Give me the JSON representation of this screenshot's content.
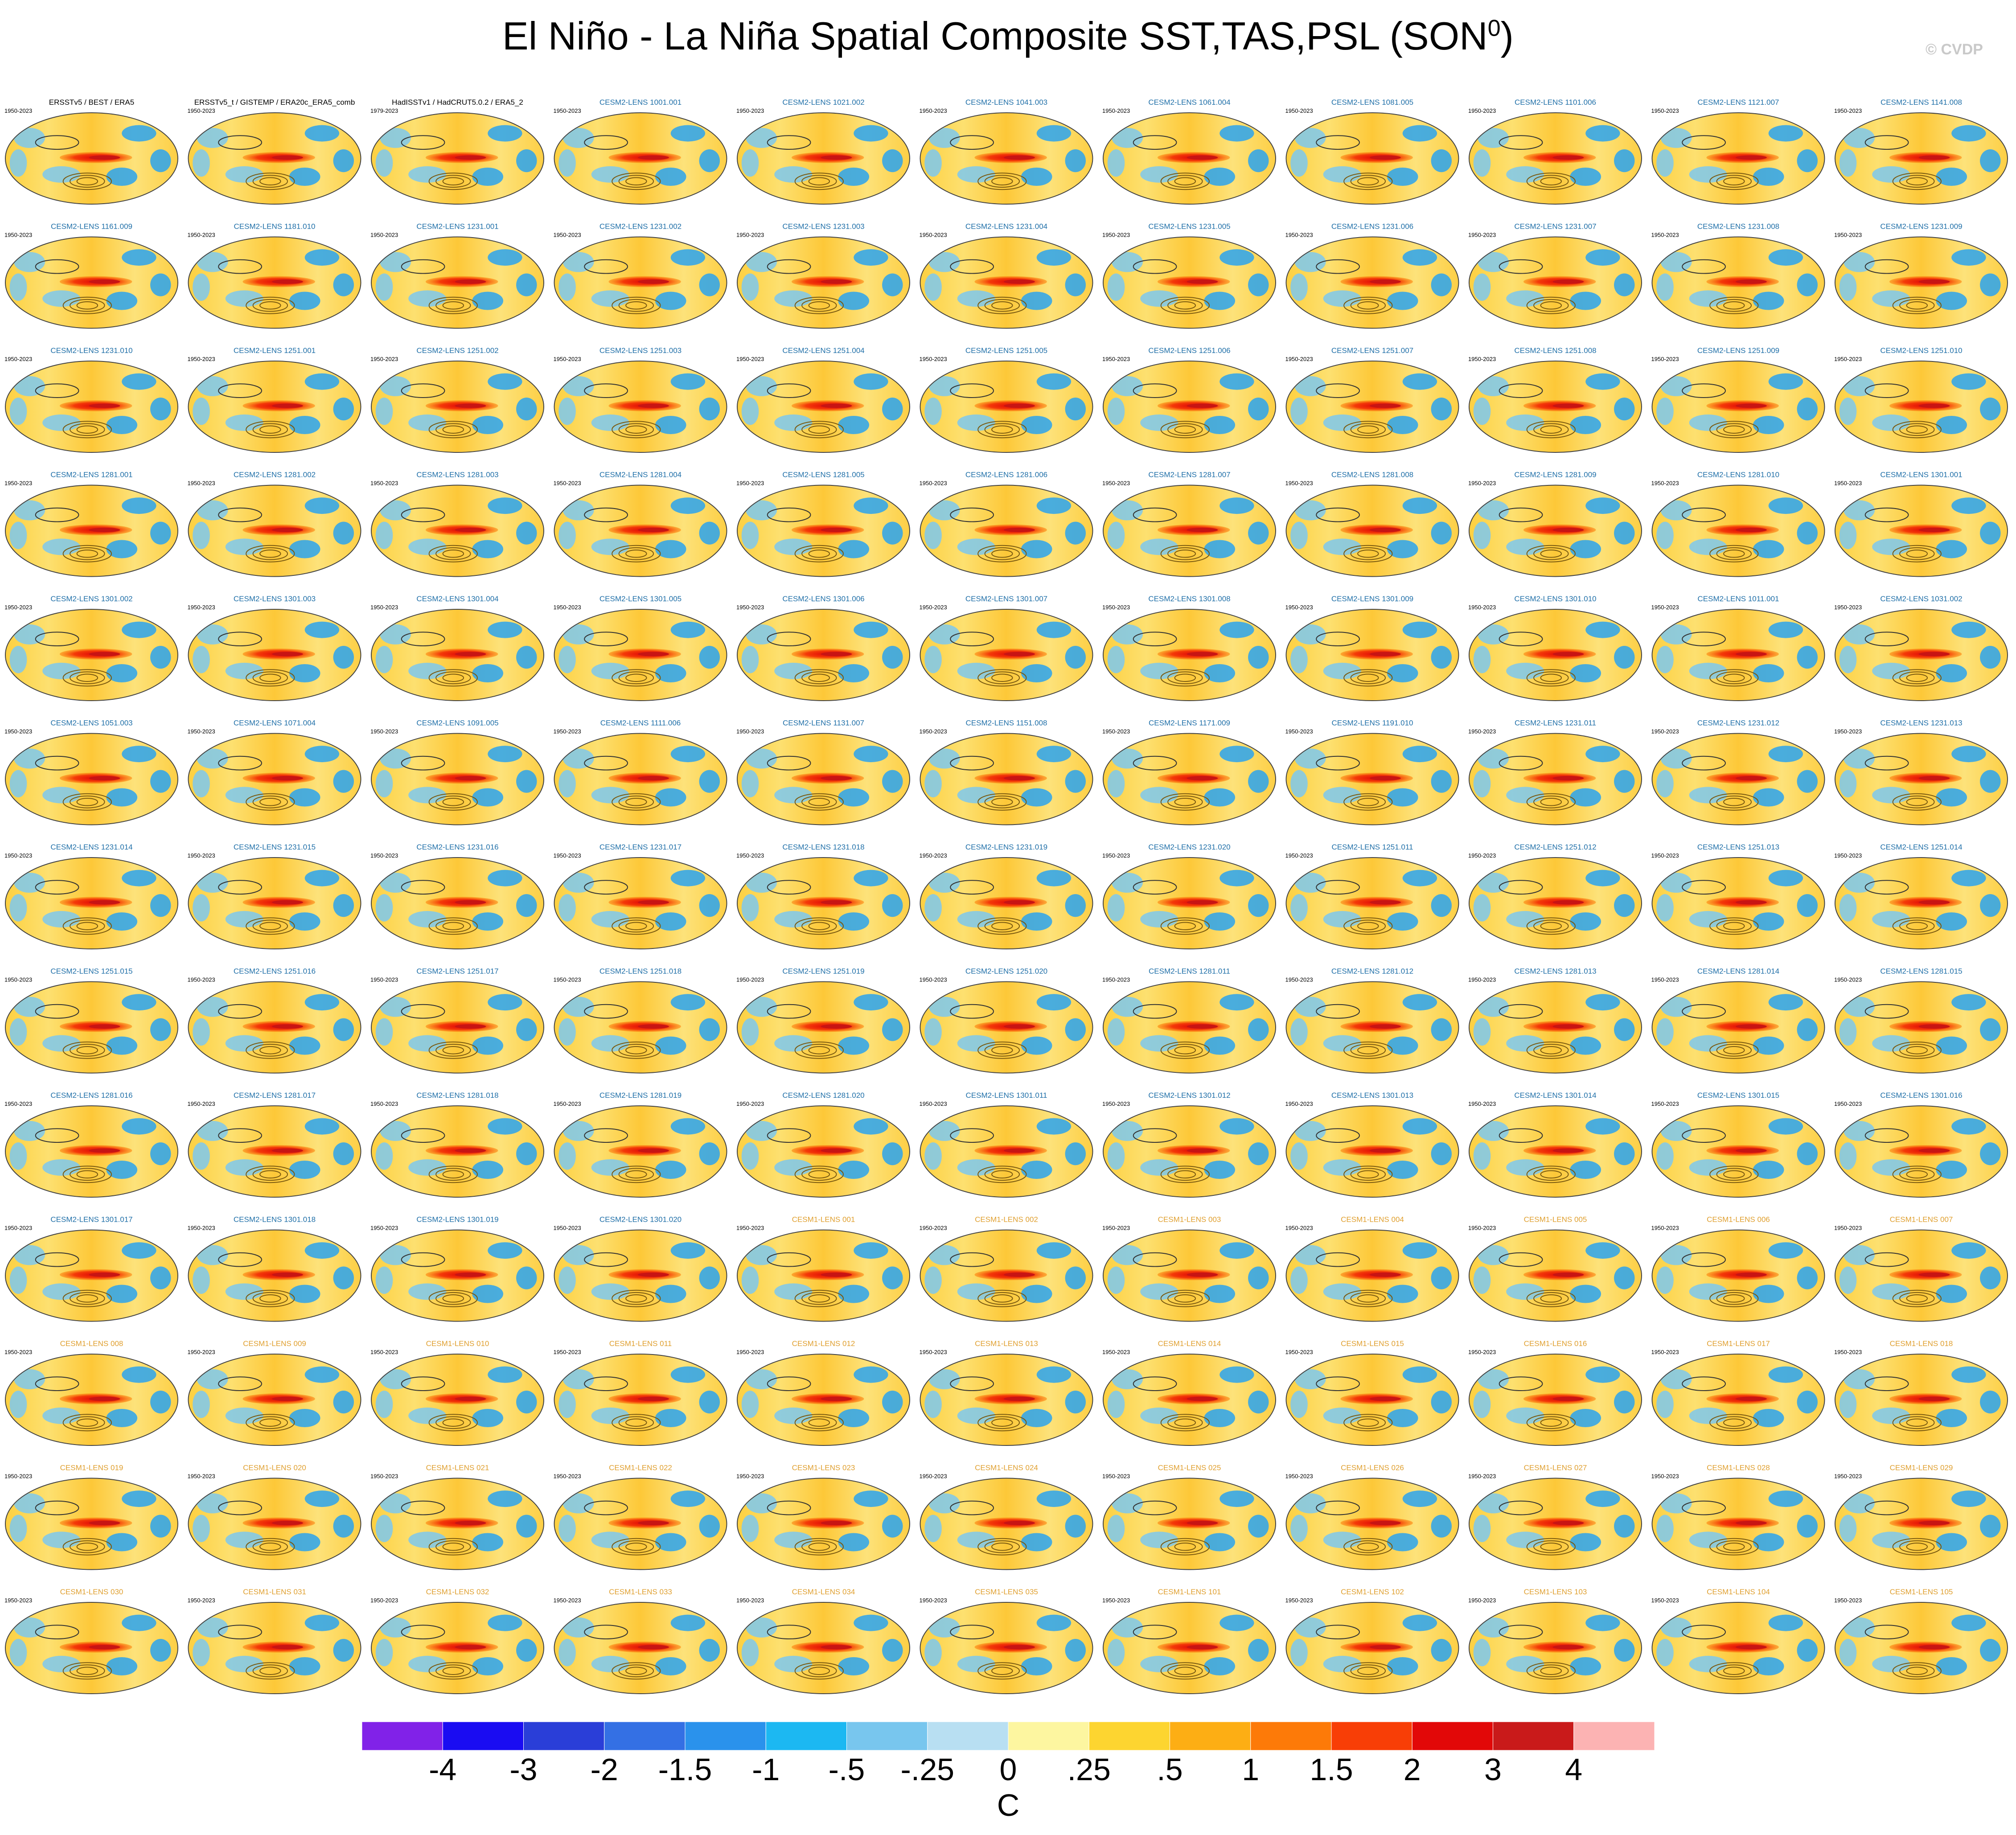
{
  "title": "El Niño - La Niña Spatial Composite SST,TAS,PSL (SON",
  "title_sup": "0",
  "title_close": ")",
  "credit": "© CVDP",
  "panel_period": "1950-2023",
  "panel_period_alt": "1979-2023",
  "panels": [
    [
      "ERSSTv5 / BEST / ERA5",
      "ERSSTv5_t / GISTEMP / ERA20c_ERA5_comb",
      "HadISSTv1 / HadCRUT5.0.2 / ERA5_2",
      "CESM2-LENS 1001.001",
      "CESM2-LENS 1021.002",
      "CESM2-LENS 1041.003",
      "CESM2-LENS 1061.004",
      "CESM2-LENS 1081.005",
      "CESM2-LENS 1101.006",
      "CESM2-LENS 1121.007",
      "CESM2-LENS 1141.008"
    ],
    [
      "CESM2-LENS 1161.009",
      "CESM2-LENS 1181.010",
      "CESM2-LENS 1231.001",
      "CESM2-LENS 1231.002",
      "CESM2-LENS 1231.003",
      "CESM2-LENS 1231.004",
      "CESM2-LENS 1231.005",
      "CESM2-LENS 1231.006",
      "CESM2-LENS 1231.007",
      "CESM2-LENS 1231.008",
      "CESM2-LENS 1231.009"
    ],
    [
      "CESM2-LENS 1231.010",
      "CESM2-LENS 1251.001",
      "CESM2-LENS 1251.002",
      "CESM2-LENS 1251.003",
      "CESM2-LENS 1251.004",
      "CESM2-LENS 1251.005",
      "CESM2-LENS 1251.006",
      "CESM2-LENS 1251.007",
      "CESM2-LENS 1251.008",
      "CESM2-LENS 1251.009",
      "CESM2-LENS 1251.010"
    ],
    [
      "CESM2-LENS 1281.001",
      "CESM2-LENS 1281.002",
      "CESM2-LENS 1281.003",
      "CESM2-LENS 1281.004",
      "CESM2-LENS 1281.005",
      "CESM2-LENS 1281.006",
      "CESM2-LENS 1281.007",
      "CESM2-LENS 1281.008",
      "CESM2-LENS 1281.009",
      "CESM2-LENS 1281.010",
      "CESM2-LENS 1301.001"
    ],
    [
      "CESM2-LENS 1301.002",
      "CESM2-LENS 1301.003",
      "CESM2-LENS 1301.004",
      "CESM2-LENS 1301.005",
      "CESM2-LENS 1301.006",
      "CESM2-LENS 1301.007",
      "CESM2-LENS 1301.008",
      "CESM2-LENS 1301.009",
      "CESM2-LENS 1301.010",
      "CESM2-LENS 1011.001",
      "CESM2-LENS 1031.002"
    ],
    [
      "CESM2-LENS 1051.003",
      "CESM2-LENS 1071.004",
      "CESM2-LENS 1091.005",
      "CESM2-LENS 1111.006",
      "CESM2-LENS 1131.007",
      "CESM2-LENS 1151.008",
      "CESM2-LENS 1171.009",
      "CESM2-LENS 1191.010",
      "CESM2-LENS 1231.011",
      "CESM2-LENS 1231.012",
      "CESM2-LENS 1231.013"
    ],
    [
      "CESM2-LENS 1231.014",
      "CESM2-LENS 1231.015",
      "CESM2-LENS 1231.016",
      "CESM2-LENS 1231.017",
      "CESM2-LENS 1231.018",
      "CESM2-LENS 1231.019",
      "CESM2-LENS 1231.020",
      "CESM2-LENS 1251.011",
      "CESM2-LENS 1251.012",
      "CESM2-LENS 1251.013",
      "CESM2-LENS 1251.014"
    ],
    [
      "CESM2-LENS 1251.015",
      "CESM2-LENS 1251.016",
      "CESM2-LENS 1251.017",
      "CESM2-LENS 1251.018",
      "CESM2-LENS 1251.019",
      "CESM2-LENS 1251.020",
      "CESM2-LENS 1281.011",
      "CESM2-LENS 1281.012",
      "CESM2-LENS 1281.013",
      "CESM2-LENS 1281.014",
      "CESM2-LENS 1281.015"
    ],
    [
      "CESM2-LENS 1281.016",
      "CESM2-LENS 1281.017",
      "CESM2-LENS 1281.018",
      "CESM2-LENS 1281.019",
      "CESM2-LENS 1281.020",
      "CESM2-LENS 1301.011",
      "CESM2-LENS 1301.012",
      "CESM2-LENS 1301.013",
      "CESM2-LENS 1301.014",
      "CESM2-LENS 1301.015",
      "CESM2-LENS 1301.016"
    ],
    [
      "CESM2-LENS 1301.017",
      "CESM2-LENS 1301.018",
      "CESM2-LENS 1301.019",
      "CESM2-LENS 1301.020",
      "CESM1-LENS 001",
      "CESM1-LENS 002",
      "CESM1-LENS 003",
      "CESM1-LENS 004",
      "CESM1-LENS 005",
      "CESM1-LENS 006",
      "CESM1-LENS 007"
    ],
    [
      "CESM1-LENS 008",
      "CESM1-LENS 009",
      "CESM1-LENS 010",
      "CESM1-LENS 011",
      "CESM1-LENS 012",
      "CESM1-LENS 013",
      "CESM1-LENS 014",
      "CESM1-LENS 015",
      "CESM1-LENS 016",
      "CESM1-LENS 017",
      "CESM1-LENS 018"
    ],
    [
      "CESM1-LENS 019",
      "CESM1-LENS 020",
      "CESM1-LENS 021",
      "CESM1-LENS 022",
      "CESM1-LENS 023",
      "CESM1-LENS 024",
      "CESM1-LENS 025",
      "CESM1-LENS 026",
      "CESM1-LENS 027",
      "CESM1-LENS 028",
      "CESM1-LENS 029"
    ],
    [
      "CESM1-LENS 030",
      "CESM1-LENS 031",
      "CESM1-LENS 032",
      "CESM1-LENS 033",
      "CESM1-LENS 034",
      "CESM1-LENS 035",
      "CESM1-LENS 101",
      "CESM1-LENS 102",
      "CESM1-LENS 103",
      "CESM1-LENS 104",
      "CESM1-LENS 105"
    ]
  ],
  "label_colors": {
    "observations": "#000000",
    "cesm2": "#1f6fa8",
    "cesm1": "#e0a030"
  },
  "chart_data": {
    "type": "heatmap",
    "title": "El Niño - La Niña Spatial Composite SST,TAS,PSL (SON0)",
    "panel_rows": 13,
    "panel_cols": 11,
    "colorbar": {
      "units": "C",
      "tick_labels": [
        "-4",
        "-3",
        "-2",
        "-1.5",
        "-1",
        "-.5",
        "-.25",
        "0",
        ".25",
        ".5",
        "1",
        "1.5",
        "2",
        "3",
        "4"
      ],
      "colors": [
        "#8122e8",
        "#1a0cf2",
        "#2a3ed8",
        "#3470e4",
        "#2a92ec",
        "#1cb8f2",
        "#78c6ee",
        "#b8dff2",
        "#fdf6a0",
        "#fdd530",
        "#fdae14",
        "#fd7a08",
        "#f83e06",
        "#e20808",
        "#c91a1a",
        "#fcb3b3"
      ]
    }
  }
}
